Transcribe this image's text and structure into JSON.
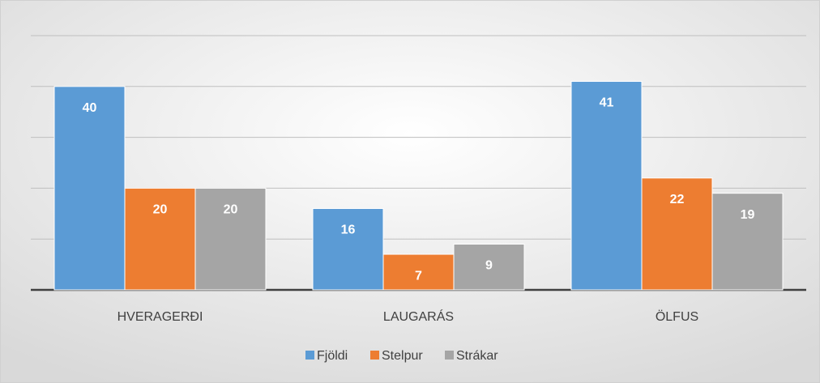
{
  "chart_data": {
    "type": "bar",
    "categories": [
      "HVERAGERÐI",
      "LAUGARÁS",
      "ÖLFUS"
    ],
    "series": [
      {
        "name": "Fjöldi",
        "color": "#5b9bd5",
        "values": [
          40,
          16,
          41
        ]
      },
      {
        "name": "Stelpur",
        "color": "#ed7d31",
        "values": [
          20,
          7,
          22
        ]
      },
      {
        "name": "Strákar",
        "color": "#a5a5a5",
        "values": [
          20,
          9,
          19
        ]
      }
    ],
    "ylim": [
      0,
      50
    ],
    "yticks": [
      0,
      10,
      20,
      30,
      40,
      50
    ],
    "grid": true,
    "legend": "bottom"
  }
}
